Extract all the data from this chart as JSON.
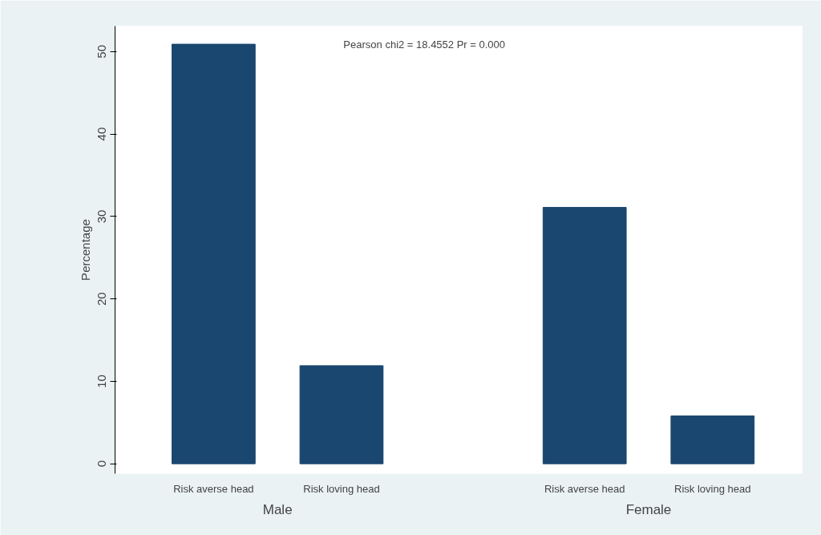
{
  "chart_data": {
    "type": "bar",
    "ylabel": "Percentage",
    "categories": [
      "Risk averse head",
      "Risk loving head",
      "Risk averse head",
      "Risk loving head"
    ],
    "values": [
      50.9,
      11.9,
      31.1,
      5.8
    ],
    "color": "#1a476f",
    "ylim": [
      -1.2,
      53.1
    ],
    "yticks": [
      0,
      10,
      20,
      30,
      40,
      50
    ],
    "grid": false,
    "annotations": [
      "Pearson chi2 = 18.4552   Pr = 0.000",
      "Male",
      "Female"
    ]
  }
}
